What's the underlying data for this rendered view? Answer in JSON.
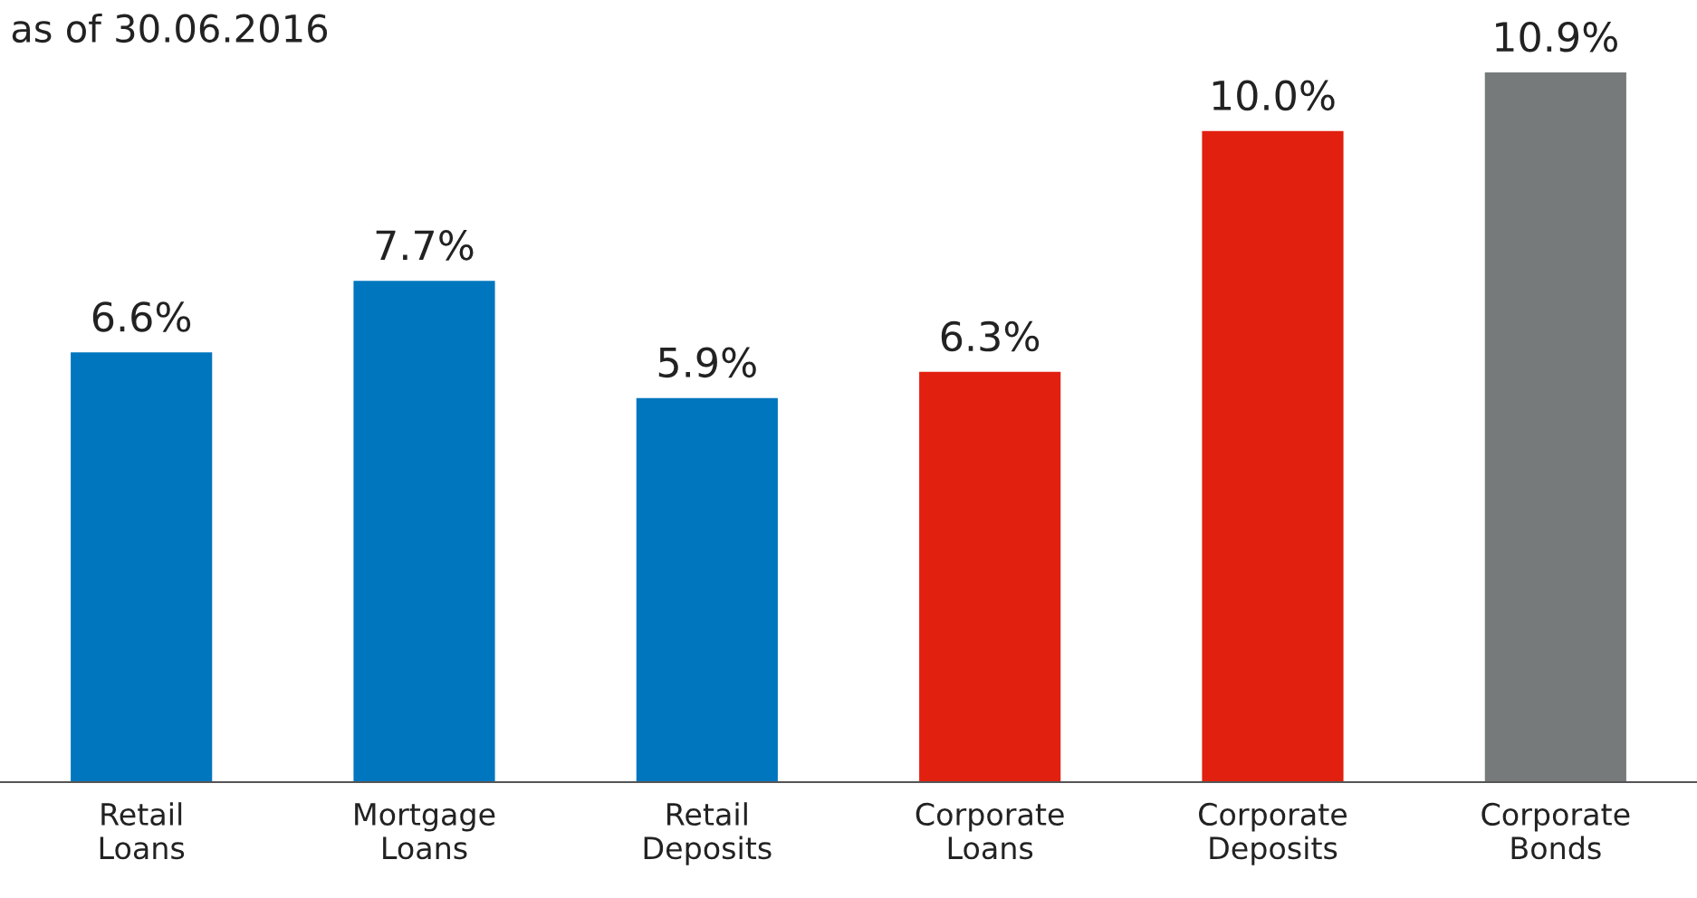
{
  "chart_data": {
    "type": "bar",
    "title": "as of 30.06.2016",
    "categories": [
      "Retail\nLoans",
      "Mortgage\nLoans",
      "Retail\nDeposits",
      "Corporate\nLoans",
      "Corporate\nDeposits",
      "Corporate\nBonds"
    ],
    "values": [
      6.6,
      7.7,
      5.9,
      6.3,
      10.0,
      10.9
    ],
    "colors": [
      "#0076be",
      "#0076be",
      "#0076be",
      "#e2200f",
      "#e2200f",
      "#777a7b"
    ],
    "value_labels": [
      "6.6%",
      "7.7%",
      "5.9%",
      "6.3%",
      "10.0%",
      "10.9%"
    ],
    "relative": false,
    "grid": false,
    "legend": false
  }
}
